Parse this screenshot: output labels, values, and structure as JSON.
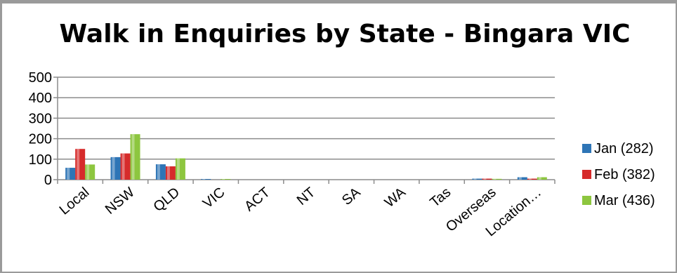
{
  "chart_data": {
    "type": "bar",
    "title": "Walk in Enquiries by State - Bingara VIC",
    "categories": [
      "Local",
      "NSW",
      "QLD",
      "VIC",
      "ACT",
      "NT",
      "SA",
      "WA",
      "Tas",
      "Overseas",
      "Location…"
    ],
    "series": [
      {
        "name": "Jan (282)",
        "color": "#2e75b6",
        "values": [
          58,
          110,
          75,
          3,
          0,
          0,
          0,
          0,
          0,
          5,
          12
        ]
      },
      {
        "name": "Feb (382)",
        "color": "#d62b2b",
        "values": [
          150,
          128,
          65,
          0,
          0,
          0,
          0,
          0,
          0,
          5,
          5
        ]
      },
      {
        "name": "Mar (436)",
        "color": "#8dc63f",
        "values": [
          74,
          222,
          104,
          2,
          0,
          0,
          0,
          0,
          0,
          4,
          12
        ]
      }
    ],
    "y_ticks": [
      "0",
      "100",
      "200",
      "300",
      "400",
      "500"
    ],
    "ylim": [
      0,
      500
    ],
    "grid": true,
    "legend_position": "right",
    "last_category_totals_note": "",
    "location_values": [
      282,
      382,
      436
    ]
  }
}
